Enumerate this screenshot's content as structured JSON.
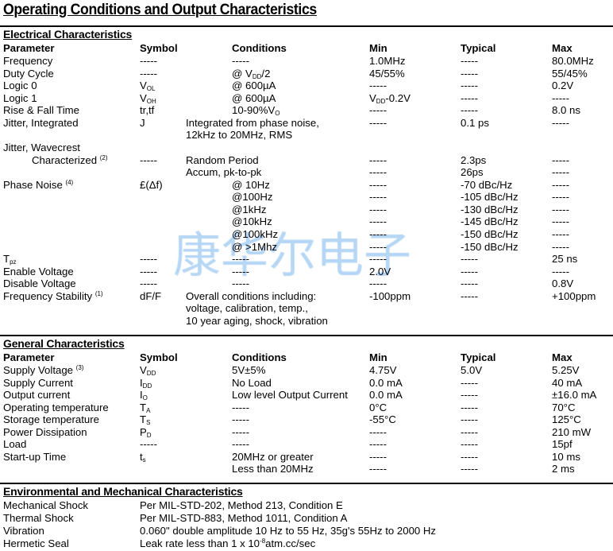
{
  "title": "Operating Conditions and Output Characteristics",
  "watermark": "康华尔电子",
  "electrical": {
    "heading": "Electrical Characteristics",
    "header": [
      "Parameter",
      "Symbol",
      "Conditions",
      "Min",
      "Typical",
      "Max"
    ],
    "rows": [
      {
        "cells": [
          "Frequency",
          "-----",
          "-----",
          "1.0MHz",
          "-----",
          "80.0MHz"
        ],
        "indent": true
      },
      {
        "cells": [
          "Duty Cycle",
          "-----",
          {
            "text": "@ V",
            "sub": "DD",
            "after": "/2"
          },
          "45/55%",
          "-----",
          "55/45%"
        ],
        "indent": true
      },
      {
        "cells": [
          "Logic 0",
          {
            "text": "V",
            "sub": "OL"
          },
          "@ 600µA",
          "-----",
          "-----",
          "0.2V"
        ],
        "indent": true
      },
      {
        "cells": [
          "Logic 1",
          {
            "text": "V",
            "sub": "OH"
          },
          "@ 600µA",
          {
            "text": "V",
            "sub": "DD",
            "after": "-0.2V"
          },
          "-----",
          "-----"
        ],
        "indent": true
      },
      {
        "cells": [
          "Rise & Fall Time",
          "tr,tf",
          {
            "text": "10-90%V",
            "sub": "O"
          },
          "-----",
          "-----",
          "8.0 ns"
        ],
        "indent": true
      },
      {
        "cells": [
          "Jitter, Integrated",
          "J",
          "Integrated from phase noise,",
          "-----",
          "0.1 ps",
          "-----"
        ],
        "indent": false
      },
      {
        "cells": [
          "",
          "",
          "12kHz to 20MHz, RMS",
          "",
          "",
          ""
        ],
        "indent": false
      },
      {
        "cells": [
          "Jitter, Wavecrest",
          "",
          "",
          "",
          "",
          ""
        ],
        "indent": false
      },
      {
        "cells": [
          {
            "text": "Characterized ",
            "sup": "(2)",
            "pad": true
          },
          "-----",
          "Random Period",
          "-----",
          "2.3ps",
          "-----"
        ],
        "indent": false
      },
      {
        "cells": [
          "",
          "",
          "Accum, pk-to-pk",
          "-----",
          "26ps",
          "-----"
        ],
        "indent": false
      },
      {
        "cells": [
          {
            "text": "Phase Noise ",
            "sup": "(4)"
          },
          "£(Δf)",
          "@ 10Hz",
          "-----",
          "-70 dBc/Hz",
          "-----"
        ],
        "indent": true
      },
      {
        "cells": [
          "",
          "",
          "@100Hz",
          "-----",
          "-105 dBc/Hz",
          "-----"
        ],
        "indent": true
      },
      {
        "cells": [
          "",
          "",
          "@1kHz",
          "-----",
          "-130 dBc/Hz",
          "-----"
        ],
        "indent": true
      },
      {
        "cells": [
          "",
          "",
          "@10kHz",
          "-----",
          "-145 dBc/Hz",
          "-----"
        ],
        "indent": true
      },
      {
        "cells": [
          "",
          "",
          "@100kHz",
          "-----",
          "-150 dBc/Hz",
          "-----"
        ],
        "indent": true
      },
      {
        "cells": [
          "",
          "",
          "@ >1Mhz",
          "-----",
          "-150 dBc/Hz",
          "-----"
        ],
        "indent": true
      },
      {
        "cells": [
          {
            "text": "T",
            "sub": "pz"
          },
          "-----",
          "-----",
          "-----",
          "-----",
          "25 ns"
        ],
        "indent": true
      },
      {
        "cells": [
          "Enable Voltage",
          "-----",
          "-----",
          "2.0V",
          "-----",
          "-----"
        ],
        "indent": true
      },
      {
        "cells": [
          "Disable Voltage",
          "-----",
          "-----",
          "-----",
          "-----",
          "0.8V"
        ],
        "indent": true
      },
      {
        "cells": [
          {
            "text": "Frequency Stability ",
            "sup": "(1)"
          },
          "dF/F",
          "Overall conditions including:",
          "-100ppm",
          "-----",
          "+100ppm"
        ],
        "indent": false
      },
      {
        "cells": [
          "",
          "",
          "voltage, calibration, temp.,",
          "",
          "",
          ""
        ],
        "indent": false
      },
      {
        "cells": [
          "",
          "",
          "10 year aging, shock, vibration",
          "",
          "",
          ""
        ],
        "indent": false
      }
    ]
  },
  "general": {
    "heading": "General Characteristics",
    "header": [
      "Parameter",
      "Symbol",
      "Conditions",
      "Min",
      "Typical",
      "Max"
    ],
    "rows": [
      {
        "cells": [
          {
            "text": "Supply Voltage ",
            "sup": "(3)"
          },
          {
            "text": "V",
            "sub": "DD"
          },
          "5V±5%",
          "4.75V",
          "5.0V",
          "5.25V"
        ],
        "indent": false
      },
      {
        "cells": [
          "Supply Current",
          {
            "text": "I",
            "sub": "DD"
          },
          "No Load",
          "0.0 mA",
          "-----",
          "40 mA"
        ],
        "indent": false
      },
      {
        "cells": [
          "Output current",
          {
            "text": "I",
            "sub": "O"
          },
          "Low level Output Current",
          "0.0 mA",
          "-----",
          "±16.0 mA"
        ],
        "indent": false
      },
      {
        "cells": [
          "Operating temperature",
          {
            "text": "T",
            "sub": "A"
          },
          "-----",
          "0°C",
          "-----",
          "70°C"
        ],
        "indent": false
      },
      {
        "cells": [
          "Storage temperature",
          {
            "text": "T",
            "sub": "S"
          },
          "-----",
          "-55°C",
          "-----",
          "125°C"
        ],
        "indent": false
      },
      {
        "cells": [
          "Power Dissipation",
          {
            "text": "P",
            "sub": "D"
          },
          "-----",
          "-----",
          "-----",
          "210 mW"
        ],
        "indent": false
      },
      {
        "cells": [
          "Load",
          "-----",
          "-----",
          "-----",
          "-----",
          "15pf"
        ],
        "indent": false
      },
      {
        "cells": [
          "Start-up Time",
          {
            "text": "t",
            "sub": "s"
          },
          "20MHz or greater",
          "-----",
          "-----",
          "10 ms"
        ],
        "indent": true
      },
      {
        "cells": [
          "",
          "",
          "Less than 20MHz",
          "-----",
          "-----",
          "2 ms"
        ],
        "indent": true
      }
    ]
  },
  "environmental": {
    "heading": "Environmental and Mechanical Characteristics",
    "rows": [
      [
        "Mechanical Shock",
        "Per MIL-STD-202, Method 213, Condition E"
      ],
      [
        "Thermal Shock",
        "Per MIL-STD-883, Method 1011, Condition A"
      ],
      [
        "Vibration",
        "0.060\" double amplitude 10 Hz to 55 Hz, 35g's 55Hz to 2000 Hz"
      ],
      [
        "Hermetic Seal",
        {
          "text": "Leak rate less than 1 x 10",
          "sup": "-8",
          "after": "atm.cc/sec"
        }
      ]
    ]
  }
}
